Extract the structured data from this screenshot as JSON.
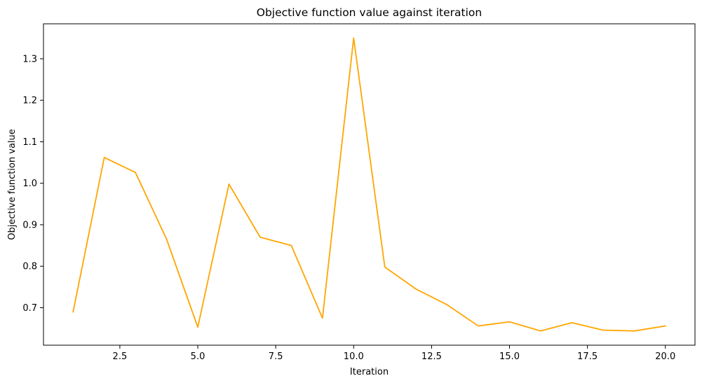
{
  "chart_data": {
    "type": "line",
    "title": "Objective function value against iteration",
    "xlabel": "Iteration",
    "ylabel": "Objective function value",
    "x": [
      1,
      2,
      3,
      4,
      5,
      6,
      7,
      8,
      9,
      10,
      11,
      12,
      13,
      14,
      15,
      16,
      17,
      18,
      19,
      20
    ],
    "series": [
      {
        "values": [
          0.69,
          1.062,
          1.026,
          0.865,
          0.653,
          0.998,
          0.87,
          0.85,
          0.675,
          1.35,
          0.798,
          0.745,
          0.707,
          0.656,
          0.666,
          0.644,
          0.664,
          0.646,
          0.644,
          0.656
        ],
        "color": "#FFA500"
      }
    ],
    "xlim": [
      0.05,
      20.95
    ],
    "ylim": [
      0.6097,
      1.3843
    ],
    "xticks": [
      2.5,
      5.0,
      7.5,
      10.0,
      12.5,
      15.0,
      17.5,
      20.0
    ],
    "xtick_labels": [
      "2.5",
      "5.0",
      "7.5",
      "10.0",
      "12.5",
      "15.0",
      "17.5",
      "20.0"
    ],
    "yticks": [
      0.7,
      0.8,
      0.9,
      1.0,
      1.1,
      1.2,
      1.3
    ],
    "ytick_labels": [
      "0.7",
      "0.8",
      "0.9",
      "1.0",
      "1.1",
      "1.2",
      "1.3"
    ],
    "grid": false,
    "legend": false
  }
}
